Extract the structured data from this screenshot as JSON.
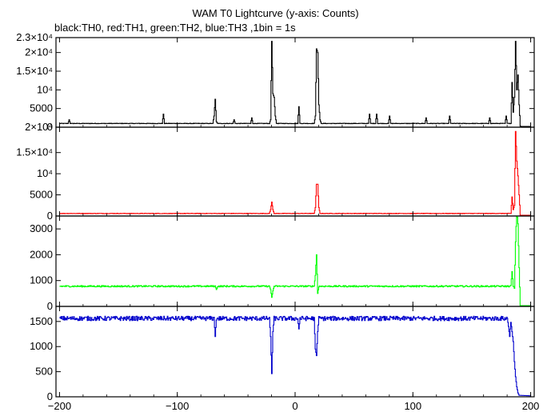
{
  "chart_data": {
    "type": "line",
    "title": "WAM T0 Lightcurve (y-axis: Counts)",
    "subtitle": "black:TH0, red:TH1, green:TH2, blue:TH3 ,1bin = 1s",
    "xlabel": "",
    "ylabel": "",
    "xlim": [
      -203,
      203
    ],
    "x_ticks": [
      -200,
      -100,
      0,
      100,
      200
    ],
    "x_tick_labels": [
      "−200",
      "−100",
      "0",
      "100",
      "200"
    ],
    "grid": false,
    "panels": [
      {
        "name": "TH0",
        "color": "#000000",
        "ylim": [
          0,
          24000
        ],
        "y_ticks": [
          0,
          5000,
          10000,
          15000,
          20000
        ],
        "y_tick_labels": [
          "0",
          "5000",
          "10⁴",
          "1.5×10⁴",
          "2×10⁴"
        ],
        "top_tick_label": "2.3×10⁴",
        "baseline": 1000,
        "noise": 60,
        "end_level": 100,
        "points": [
          [
            -200,
            1000
          ],
          [
            -193,
            1000
          ],
          [
            -192,
            2000
          ],
          [
            -191,
            1000
          ],
          [
            -113,
            1000
          ],
          [
            -112,
            3500
          ],
          [
            -111,
            1000
          ],
          [
            -70,
            1000
          ],
          [
            -69,
            3000
          ],
          [
            -68,
            7500
          ],
          [
            -67,
            1500
          ],
          [
            -66,
            1000
          ],
          [
            -53,
            1000
          ],
          [
            -52,
            2000
          ],
          [
            -51,
            1000
          ],
          [
            -38,
            1000
          ],
          [
            -37,
            2500
          ],
          [
            -36,
            1000
          ],
          [
            -22,
            1000
          ],
          [
            -21,
            2000
          ],
          [
            -20,
            23000
          ],
          [
            -19,
            9000
          ],
          [
            -18,
            8000
          ],
          [
            -17,
            3000
          ],
          [
            -16,
            1000
          ],
          [
            2,
            1000
          ],
          [
            3,
            5500
          ],
          [
            4,
            1000
          ],
          [
            16,
            1000
          ],
          [
            17,
            3000
          ],
          [
            18,
            21000
          ],
          [
            19,
            20000
          ],
          [
            20,
            6000
          ],
          [
            21,
            2000
          ],
          [
            22,
            1000
          ],
          [
            62,
            1000
          ],
          [
            63,
            3500
          ],
          [
            64,
            1000
          ],
          [
            68,
            1000
          ],
          [
            69,
            3500
          ],
          [
            70,
            1000
          ],
          [
            79,
            1000
          ],
          [
            80,
            3000
          ],
          [
            81,
            1000
          ],
          [
            110,
            1000
          ],
          [
            111,
            2500
          ],
          [
            112,
            1000
          ],
          [
            130,
            1000
          ],
          [
            131,
            3000
          ],
          [
            132,
            1000
          ],
          [
            164,
            1000
          ],
          [
            165,
            2500
          ],
          [
            166,
            1000
          ],
          [
            178,
            1000
          ],
          [
            179,
            3000
          ],
          [
            180,
            1000
          ],
          [
            183,
            1000
          ],
          [
            184,
            12000
          ],
          [
            185,
            4000
          ],
          [
            186,
            8000
          ],
          [
            187,
            23000
          ],
          [
            188,
            10000
          ],
          [
            189,
            14000
          ],
          [
            190,
            6000
          ],
          [
            191,
            300
          ],
          [
            192,
            100
          ],
          [
            200,
            100
          ]
        ]
      },
      {
        "name": "TH1",
        "color": "#ff0000",
        "ylim": [
          0,
          21000
        ],
        "y_ticks": [
          0,
          5000,
          10000,
          15000
        ],
        "y_tick_labels": [
          "0",
          "5000",
          "10⁴",
          "1.5×10⁴"
        ],
        "top_tick_label": "2×10⁴",
        "baseline": 600,
        "noise": 50,
        "end_level": 50,
        "points": [
          [
            -200,
            600
          ],
          [
            -22,
            600
          ],
          [
            -21,
            1500
          ],
          [
            -20,
            3300
          ],
          [
            -19,
            1500
          ],
          [
            -18,
            600
          ],
          [
            16,
            600
          ],
          [
            17,
            2000
          ],
          [
            18,
            7500
          ],
          [
            19,
            7500
          ],
          [
            20,
            2000
          ],
          [
            21,
            600
          ],
          [
            183,
            600
          ],
          [
            184,
            4500
          ],
          [
            185,
            1500
          ],
          [
            186,
            2500
          ],
          [
            187,
            20000
          ],
          [
            188,
            13000
          ],
          [
            189,
            9500
          ],
          [
            190,
            5000
          ],
          [
            191,
            200
          ],
          [
            192,
            50
          ],
          [
            200,
            50
          ]
        ]
      },
      {
        "name": "TH2",
        "color": "#00ff00",
        "ylim": [
          0,
          3500
        ],
        "y_ticks": [
          0,
          1000,
          2000,
          3000
        ],
        "y_tick_labels": [
          "0",
          "1000",
          "2000",
          "3000"
        ],
        "baseline": 780,
        "noise": 30,
        "end_level": 0,
        "points": [
          [
            -200,
            780
          ],
          [
            -68,
            780
          ],
          [
            -67,
            650
          ],
          [
            -66,
            780
          ],
          [
            -22,
            780
          ],
          [
            -21,
            650
          ],
          [
            -20,
            350
          ],
          [
            -19,
            600
          ],
          [
            -18,
            780
          ],
          [
            16,
            780
          ],
          [
            17,
            1200
          ],
          [
            18,
            2000
          ],
          [
            19,
            500
          ],
          [
            20,
            780
          ],
          [
            183,
            780
          ],
          [
            184,
            1350
          ],
          [
            185,
            800
          ],
          [
            186,
            700
          ],
          [
            187,
            2500
          ],
          [
            188,
            3700
          ],
          [
            189,
            3200
          ],
          [
            190,
            1500
          ],
          [
            191,
            0
          ],
          [
            200,
            0
          ]
        ]
      },
      {
        "name": "TH3",
        "color": "#0000cc",
        "ylim": [
          0,
          1800
        ],
        "y_ticks": [
          0,
          500,
          1000,
          1500
        ],
        "y_tick_labels": [
          "0",
          "500",
          "1000",
          "1500"
        ],
        "baseline": 1560,
        "noise": 45,
        "end_level": 20,
        "points": [
          [
            -200,
            1560
          ],
          [
            -69,
            1560
          ],
          [
            -68,
            1200
          ],
          [
            -67,
            1560
          ],
          [
            -22,
            1560
          ],
          [
            -21,
            1200
          ],
          [
            -20,
            460
          ],
          [
            -19,
            1300
          ],
          [
            -18,
            1560
          ],
          [
            2,
            1560
          ],
          [
            3,
            1350
          ],
          [
            4,
            1560
          ],
          [
            16,
            1560
          ],
          [
            17,
            950
          ],
          [
            18,
            820
          ],
          [
            19,
            1300
          ],
          [
            20,
            1560
          ],
          [
            180,
            1560
          ],
          [
            181,
            1400
          ],
          [
            182,
            1200
          ],
          [
            183,
            1500
          ],
          [
            184,
            1300
          ],
          [
            185,
            1100
          ],
          [
            186,
            700
          ],
          [
            187,
            400
          ],
          [
            188,
            200
          ],
          [
            189,
            80
          ],
          [
            190,
            30
          ],
          [
            200,
            20
          ]
        ]
      }
    ]
  }
}
